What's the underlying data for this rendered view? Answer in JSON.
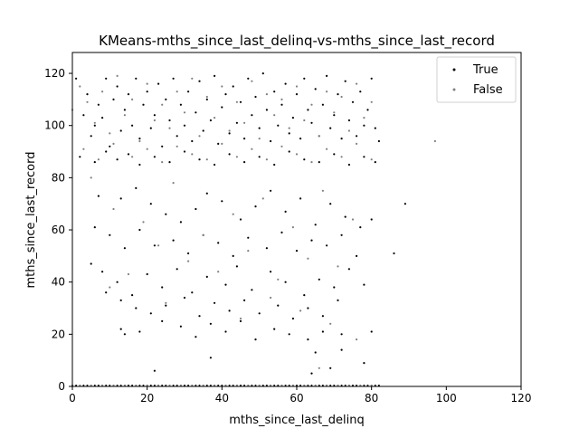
{
  "chart_data": {
    "type": "scatter",
    "title": "KMeans-mths_since_last_delinq-vs-mths_since_last_record",
    "xlabel": "mths_since_last_delinq",
    "ylabel": "mths_since_last_record",
    "xlim": [
      0,
      120
    ],
    "ylim": [
      0,
      128
    ],
    "xticks": [
      "0",
      "20",
      "40",
      "60",
      "80",
      "100",
      "120"
    ],
    "yticks": [
      "0",
      "20",
      "40",
      "60",
      "80",
      "100",
      "120"
    ],
    "grid": false,
    "legend_position": "top-right",
    "series": [
      {
        "name": "True",
        "color": "#000000",
        "points": [
          [
            1,
            118
          ],
          [
            3,
            104
          ],
          [
            4,
            112
          ],
          [
            5,
            96
          ],
          [
            6,
            100
          ],
          [
            7,
            108
          ],
          [
            8,
            103
          ],
          [
            9,
            118
          ],
          [
            10,
            92
          ],
          [
            11,
            110
          ],
          [
            12,
            115
          ],
          [
            13,
            98
          ],
          [
            14,
            106
          ],
          [
            15,
            112
          ],
          [
            16,
            100
          ],
          [
            17,
            118
          ],
          [
            18,
            95
          ],
          [
            19,
            108
          ],
          [
            20,
            113
          ],
          [
            21,
            99
          ],
          [
            22,
            104
          ],
          [
            23,
            116
          ],
          [
            24,
            92
          ],
          [
            25,
            110
          ],
          [
            26,
            102
          ],
          [
            27,
            118
          ],
          [
            28,
            96
          ],
          [
            29,
            108
          ],
          [
            30,
            100
          ],
          [
            31,
            113
          ],
          [
            32,
            94
          ],
          [
            33,
            105
          ],
          [
            34,
            117
          ],
          [
            35,
            98
          ],
          [
            36,
            110
          ],
          [
            37,
            102
          ],
          [
            38,
            119
          ],
          [
            39,
            93
          ],
          [
            40,
            107
          ],
          [
            41,
            112
          ],
          [
            42,
            97
          ],
          [
            43,
            115
          ],
          [
            44,
            101
          ],
          [
            45,
            109
          ],
          [
            46,
            95
          ],
          [
            47,
            118
          ],
          [
            48,
            104
          ],
          [
            49,
            111
          ],
          [
            50,
            99
          ],
          [
            51,
            120
          ],
          [
            52,
            106
          ],
          [
            53,
            94
          ],
          [
            54,
            113
          ],
          [
            55,
            100
          ],
          [
            56,
            108
          ],
          [
            57,
            116
          ],
          [
            58,
            97
          ],
          [
            59,
            103
          ],
          [
            60,
            112
          ],
          [
            61,
            95
          ],
          [
            62,
            118
          ],
          [
            63,
            106
          ],
          [
            64,
            101
          ],
          [
            65,
            114
          ],
          [
            66,
            96
          ],
          [
            67,
            108
          ],
          [
            68,
            119
          ],
          [
            69,
            99
          ],
          [
            70,
            104
          ],
          [
            71,
            112
          ],
          [
            72,
            95
          ],
          [
            73,
            117
          ],
          [
            74,
            102
          ],
          [
            75,
            109
          ],
          [
            76,
            96
          ],
          [
            77,
            113
          ],
          [
            78,
            100
          ],
          [
            79,
            106
          ],
          [
            80,
            118
          ],
          [
            81,
            99
          ],
          [
            82,
            94
          ],
          [
            2,
            88
          ],
          [
            6,
            86
          ],
          [
            9,
            90
          ],
          [
            12,
            87
          ],
          [
            15,
            89
          ],
          [
            18,
            85
          ],
          [
            22,
            88
          ],
          [
            26,
            86
          ],
          [
            30,
            90
          ],
          [
            34,
            87
          ],
          [
            38,
            85
          ],
          [
            42,
            89
          ],
          [
            46,
            86
          ],
          [
            50,
            88
          ],
          [
            54,
            85
          ],
          [
            58,
            90
          ],
          [
            62,
            87
          ],
          [
            66,
            86
          ],
          [
            70,
            89
          ],
          [
            74,
            85
          ],
          [
            78,
            88
          ],
          [
            81,
            86
          ],
          [
            7,
            73
          ],
          [
            13,
            72
          ],
          [
            17,
            76
          ],
          [
            21,
            70
          ],
          [
            25,
            66
          ],
          [
            29,
            63
          ],
          [
            33,
            68
          ],
          [
            36,
            74
          ],
          [
            40,
            71
          ],
          [
            45,
            64
          ],
          [
            49,
            69
          ],
          [
            53,
            75
          ],
          [
            57,
            67
          ],
          [
            61,
            72
          ],
          [
            65,
            62
          ],
          [
            69,
            70
          ],
          [
            73,
            65
          ],
          [
            77,
            61
          ],
          [
            80,
            64
          ],
          [
            89,
            70
          ],
          [
            6,
            61
          ],
          [
            10,
            58
          ],
          [
            14,
            53
          ],
          [
            18,
            60
          ],
          [
            22,
            54
          ],
          [
            27,
            56
          ],
          [
            31,
            51
          ],
          [
            35,
            58
          ],
          [
            39,
            55
          ],
          [
            43,
            50
          ],
          [
            47,
            57
          ],
          [
            52,
            53
          ],
          [
            56,
            59
          ],
          [
            60,
            52
          ],
          [
            64,
            56
          ],
          [
            68,
            54
          ],
          [
            72,
            58
          ],
          [
            76,
            50
          ],
          [
            86,
            51
          ],
          [
            5,
            47
          ],
          [
            8,
            44
          ],
          [
            12,
            40
          ],
          [
            16,
            35
          ],
          [
            20,
            43
          ],
          [
            24,
            38
          ],
          [
            28,
            45
          ],
          [
            32,
            36
          ],
          [
            36,
            42
          ],
          [
            41,
            39
          ],
          [
            44,
            46
          ],
          [
            48,
            37
          ],
          [
            53,
            44
          ],
          [
            57,
            40
          ],
          [
            62,
            35
          ],
          [
            66,
            41
          ],
          [
            70,
            38
          ],
          [
            74,
            45
          ],
          [
            78,
            39
          ],
          [
            9,
            36
          ],
          [
            13,
            33
          ],
          [
            17,
            30
          ],
          [
            21,
            28
          ],
          [
            25,
            31
          ],
          [
            30,
            34
          ],
          [
            34,
            27
          ],
          [
            38,
            32
          ],
          [
            42,
            29
          ],
          [
            46,
            33
          ],
          [
            50,
            28
          ],
          [
            55,
            31
          ],
          [
            59,
            26
          ],
          [
            63,
            30
          ],
          [
            67,
            27
          ],
          [
            71,
            33
          ],
          [
            13,
            22
          ],
          [
            14,
            20
          ],
          [
            18,
            21
          ],
          [
            24,
            25
          ],
          [
            29,
            23
          ],
          [
            33,
            19
          ],
          [
            37,
            24
          ],
          [
            41,
            21
          ],
          [
            45,
            25
          ],
          [
            49,
            18
          ],
          [
            54,
            22
          ],
          [
            58,
            20
          ],
          [
            63,
            18
          ],
          [
            67,
            21
          ],
          [
            72,
            20
          ],
          [
            80,
            21
          ],
          [
            22,
            6
          ],
          [
            37,
            11
          ],
          [
            64,
            5
          ],
          [
            65,
            13
          ],
          [
            69,
            7
          ],
          [
            72,
            14
          ],
          [
            78,
            9
          ]
        ]
      },
      {
        "name": "False",
        "color": "#808080",
        "points": [
          [
            0,
            106
          ],
          [
            2,
            115
          ],
          [
            4,
            109
          ],
          [
            6,
            101
          ],
          [
            8,
            113
          ],
          [
            10,
            97
          ],
          [
            12,
            119
          ],
          [
            14,
            104
          ],
          [
            16,
            110
          ],
          [
            18,
            94
          ],
          [
            20,
            116
          ],
          [
            22,
            102
          ],
          [
            24,
            108
          ],
          [
            26,
            99
          ],
          [
            28,
            113
          ],
          [
            30,
            105
          ],
          [
            32,
            118
          ],
          [
            34,
            96
          ],
          [
            36,
            111
          ],
          [
            38,
            103
          ],
          [
            40,
            115
          ],
          [
            42,
            98
          ],
          [
            44,
            109
          ],
          [
            46,
            101
          ],
          [
            48,
            117
          ],
          [
            50,
            95
          ],
          [
            52,
            112
          ],
          [
            54,
            104
          ],
          [
            56,
            110
          ],
          [
            58,
            99
          ],
          [
            60,
            115
          ],
          [
            62,
            102
          ],
          [
            64,
            108
          ],
          [
            66,
            96
          ],
          [
            68,
            113
          ],
          [
            70,
            105
          ],
          [
            72,
            111
          ],
          [
            74,
            98
          ],
          [
            76,
            116
          ],
          [
            78,
            103
          ],
          [
            80,
            109
          ],
          [
            3,
            91
          ],
          [
            7,
            87
          ],
          [
            11,
            93
          ],
          [
            16,
            88
          ],
          [
            20,
            91
          ],
          [
            24,
            86
          ],
          [
            28,
            92
          ],
          [
            32,
            89
          ],
          [
            36,
            87
          ],
          [
            40,
            93
          ],
          [
            44,
            88
          ],
          [
            48,
            91
          ],
          [
            52,
            87
          ],
          [
            56,
            92
          ],
          [
            60,
            89
          ],
          [
            64,
            86
          ],
          [
            68,
            91
          ],
          [
            72,
            88
          ],
          [
            76,
            93
          ],
          [
            80,
            87
          ],
          [
            5,
            80
          ],
          [
            11,
            68
          ],
          [
            19,
            63
          ],
          [
            27,
            78
          ],
          [
            35,
            58
          ],
          [
            43,
            66
          ],
          [
            51,
            72
          ],
          [
            59,
            61
          ],
          [
            67,
            75
          ],
          [
            75,
            64
          ],
          [
            23,
            54
          ],
          [
            31,
            48
          ],
          [
            39,
            44
          ],
          [
            47,
            52
          ],
          [
            55,
            41
          ],
          [
            63,
            49
          ],
          [
            71,
            46
          ],
          [
            15,
            43
          ],
          [
            25,
            32
          ],
          [
            45,
            26
          ],
          [
            53,
            34
          ],
          [
            61,
            29
          ],
          [
            69,
            24
          ],
          [
            76,
            18
          ],
          [
            66,
            7
          ],
          [
            10,
            38
          ],
          [
            97,
            94
          ]
        ]
      }
    ],
    "baseline_points": {
      "true": [
        0,
        1,
        2,
        3,
        4,
        5,
        6,
        7,
        8,
        9,
        10,
        11,
        12,
        13,
        14,
        15,
        16,
        17,
        18,
        19,
        20,
        21,
        22,
        23,
        24,
        25,
        26,
        27,
        28,
        29,
        30,
        31,
        32,
        33,
        34,
        35,
        36,
        37,
        38,
        39,
        40,
        41,
        42,
        43,
        44,
        45,
        46,
        47,
        48,
        49,
        50,
        51,
        52,
        53,
        54,
        55,
        56,
        57,
        58,
        59,
        60,
        61,
        62,
        63,
        64,
        65,
        66,
        67,
        68,
        69,
        70,
        71,
        72,
        73,
        74,
        75,
        76,
        77,
        78,
        79,
        80,
        81,
        82
      ],
      "false": [
        0,
        2,
        5,
        8,
        11,
        14,
        17,
        20,
        23,
        26,
        29,
        32,
        35,
        38,
        41,
        44,
        47,
        50,
        53,
        56,
        59,
        62,
        65,
        68,
        71,
        74,
        77,
        80
      ]
    }
  }
}
